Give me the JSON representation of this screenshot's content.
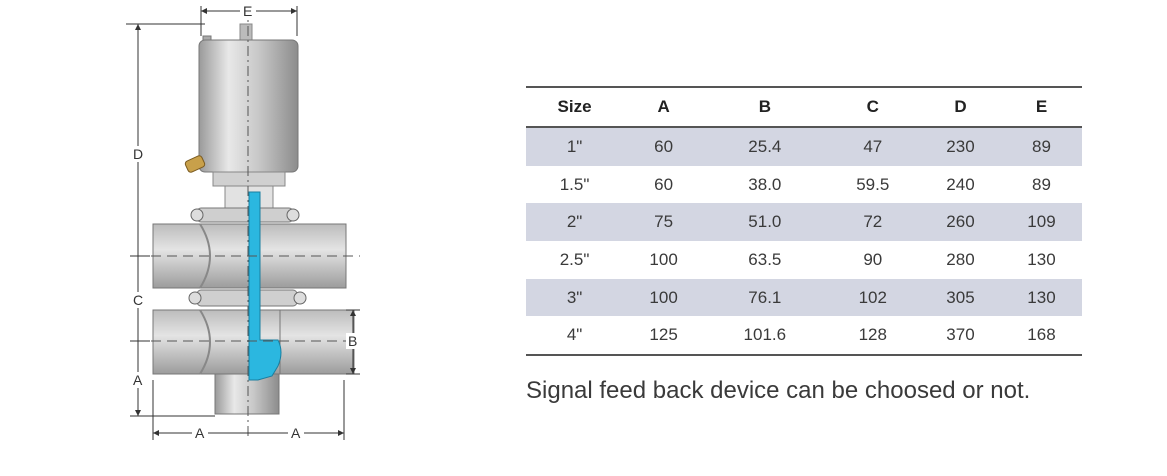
{
  "drawing": {
    "dim_labels": {
      "top": "E",
      "left_upper": "D",
      "left_middle": "C",
      "left_lower": "A",
      "right": "B",
      "bottom_left": "A",
      "bottom_right": "A"
    }
  },
  "table": {
    "headers": [
      "Size",
      "A",
      "B",
      "C",
      "D",
      "E"
    ],
    "rows": [
      [
        "1\"",
        "60",
        "25.4",
        "47",
        "230",
        "89"
      ],
      [
        "1.5\"",
        "60",
        "38.0",
        "59.5",
        "240",
        "89"
      ],
      [
        "2\"",
        "75",
        "51.0",
        "72",
        "260",
        "109"
      ],
      [
        "2.5\"",
        "100",
        "63.5",
        "90",
        "280",
        "130"
      ],
      [
        "3\"",
        "100",
        "76.1",
        "102",
        "305",
        "130"
      ],
      [
        "4\"",
        "125",
        "101.6",
        "128",
        "370",
        "168"
      ]
    ]
  },
  "note": "Signal feed back device can be choosed or not.",
  "colors": {
    "highlight": "#2bb7e0",
    "row_shade": "#d3d6e2"
  }
}
